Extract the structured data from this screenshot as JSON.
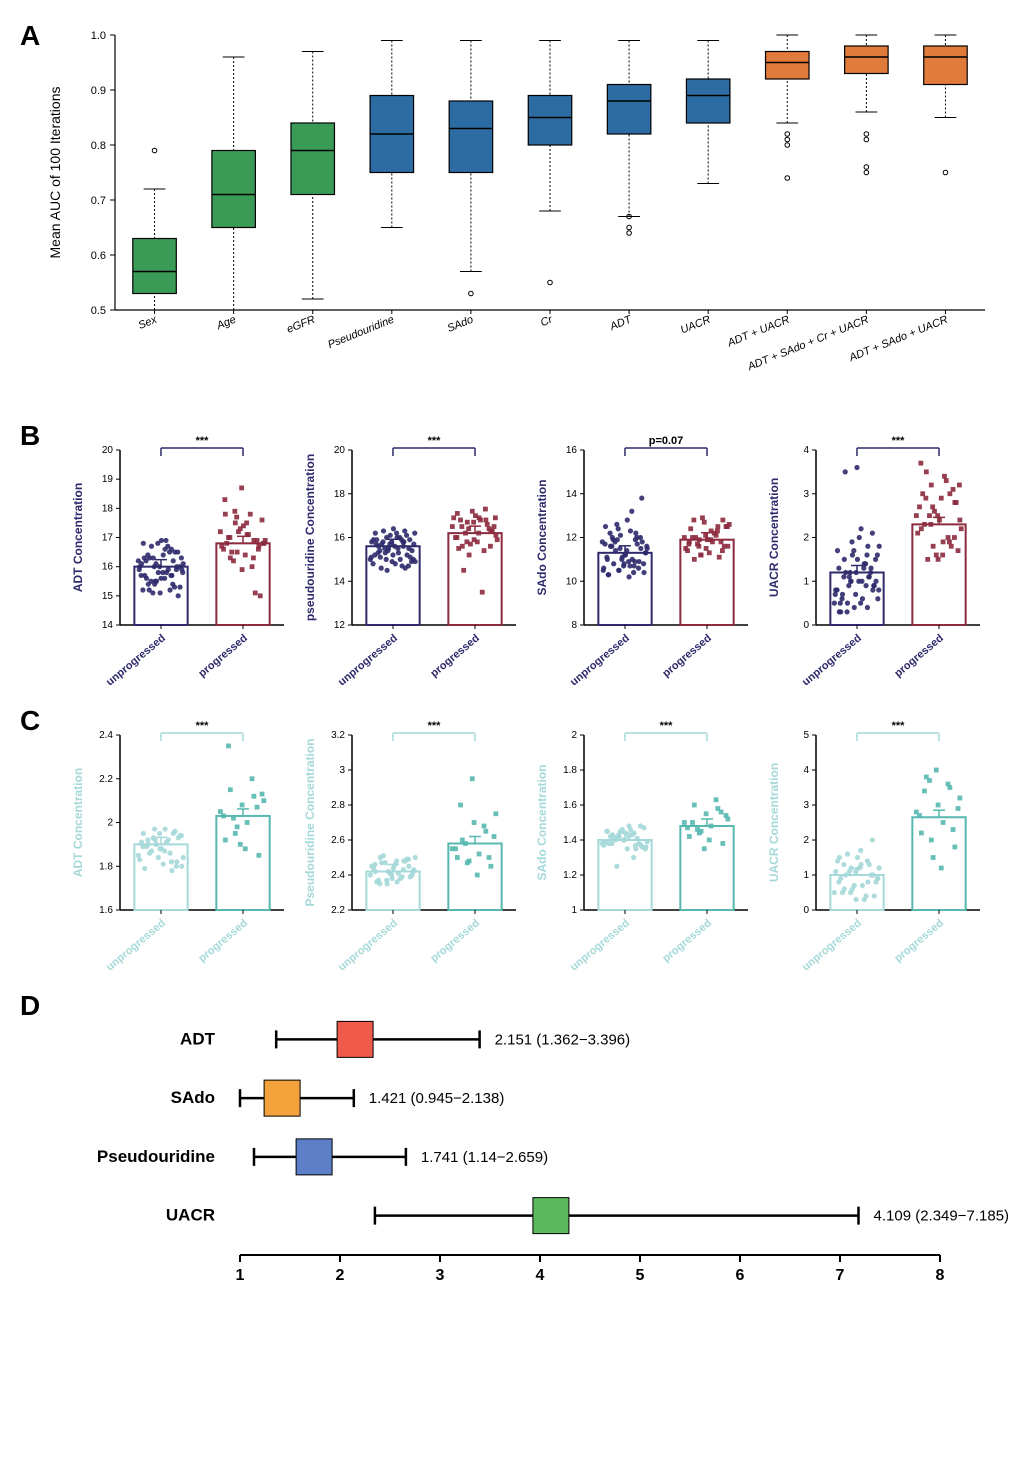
{
  "panelA": {
    "label": "A",
    "type": "boxplot",
    "ylabel": "Mean AUC of 100 Iterations",
    "ylim": [
      0.5,
      1.0
    ],
    "yticks": [
      0.5,
      0.6,
      0.7,
      0.8,
      0.9,
      1.0
    ],
    "ytick_labels": [
      "0.5",
      "0.6",
      "0.7",
      "0.8",
      "0.9",
      "1.0"
    ],
    "label_fontsize": 14,
    "tick_fontsize": 11,
    "categories": [
      "Sex",
      "Age",
      "eGFR",
      "Pseudouridine",
      "SAdo",
      "Cr",
      "ADT",
      "UACR",
      "ADT + UACR",
      "ADT + SAdo + Cr + UACR",
      "ADT + SAdo + UACR"
    ],
    "colors": [
      "#3a9b56",
      "#3a9b56",
      "#3a9b56",
      "#2d6ca2",
      "#2d6ca2",
      "#2d6ca2",
      "#2d6ca2",
      "#2d6ca2",
      "#e07b3c",
      "#e07b3c",
      "#e07b3c"
    ],
    "boxes": [
      {
        "min": 0.5,
        "q1": 0.53,
        "med": 0.57,
        "q3": 0.63,
        "max": 0.72,
        "outliers": [
          0.79
        ]
      },
      {
        "min": 0.5,
        "q1": 0.65,
        "med": 0.71,
        "q3": 0.79,
        "max": 0.96,
        "outliers": []
      },
      {
        "min": 0.52,
        "q1": 0.71,
        "med": 0.79,
        "q3": 0.84,
        "max": 0.97,
        "outliers": []
      },
      {
        "min": 0.65,
        "q1": 0.75,
        "med": 0.82,
        "q3": 0.89,
        "max": 0.99,
        "outliers": []
      },
      {
        "min": 0.57,
        "q1": 0.75,
        "med": 0.83,
        "q3": 0.88,
        "max": 0.99,
        "outliers": [
          0.53
        ]
      },
      {
        "min": 0.68,
        "q1": 0.8,
        "med": 0.85,
        "q3": 0.89,
        "max": 0.99,
        "outliers": [
          0.55
        ]
      },
      {
        "min": 0.67,
        "q1": 0.82,
        "med": 0.88,
        "q3": 0.91,
        "max": 0.99,
        "outliers": [
          0.64,
          0.65,
          0.67
        ]
      },
      {
        "min": 0.73,
        "q1": 0.84,
        "med": 0.89,
        "q3": 0.92,
        "max": 0.99,
        "outliers": []
      },
      {
        "min": 0.84,
        "q1": 0.92,
        "med": 0.95,
        "q3": 0.97,
        "max": 1.0,
        "outliers": [
          0.8,
          0.81,
          0.82,
          0.74
        ]
      },
      {
        "min": 0.86,
        "q1": 0.93,
        "med": 0.96,
        "q3": 0.98,
        "max": 1.0,
        "outliers": [
          0.81,
          0.82,
          0.75,
          0.76
        ]
      },
      {
        "min": 0.85,
        "q1": 0.91,
        "med": 0.96,
        "q3": 0.98,
        "max": 1.0,
        "outliers": [
          0.75
        ]
      }
    ],
    "background_color": "#ffffff",
    "box_border_color": "#000000",
    "whisker_color": "#000000"
  },
  "panelB": {
    "label": "B",
    "type": "scatter_bar_row",
    "accent_colors": {
      "unprogressed": "#2e2a6b",
      "progressed": "#8c2a3e"
    },
    "xlabels": [
      "unprogressed",
      "progressed"
    ],
    "sig_label": "***",
    "charts": [
      {
        "ylabel": "ADT Concentration",
        "ylim": [
          14,
          20
        ],
        "yticks": [
          14,
          15,
          16,
          17,
          18,
          19,
          20
        ],
        "bar_heights": [
          16.0,
          16.8
        ],
        "sig": "***",
        "pts_left": [
          16.2,
          15.5,
          15.7,
          16.8,
          15.1,
          16.0,
          15.4,
          16.6,
          15.9,
          16.3,
          15.2,
          16.1,
          15.8,
          16.5,
          15.6,
          16.4,
          15.3,
          16.7,
          15.9,
          16.0,
          15.5,
          16.2,
          15.7,
          16.9,
          15.0,
          16.3,
          15.8,
          16.1,
          15.4,
          16.6,
          15.2,
          16.0,
          15.9,
          16.4,
          15.6,
          16.3,
          15.1,
          16.5,
          15.7,
          16.8,
          15.3,
          16.2,
          15.8,
          16.0,
          15.5,
          16.7,
          15.9,
          16.1,
          15.4,
          16.3,
          15.6,
          16.5,
          15.2,
          16.9,
          15.8,
          16.0,
          15.7
        ],
        "pts_right": [
          17.2,
          16.5,
          16.9,
          17.8,
          15.9,
          16.7,
          16.3,
          17.1,
          16.8,
          17.5,
          16.0,
          16.6,
          17.3,
          16.9,
          17.0,
          16.4,
          17.6,
          16.2,
          17.8,
          16.7,
          17.2,
          15.1,
          16.8,
          17.4,
          15.0,
          16.5,
          17.1,
          16.9,
          17.7,
          16.3,
          18.3,
          18.7,
          16.6,
          17.0,
          17.5,
          16.8,
          17.9
        ]
      },
      {
        "ylabel": "pseudouridine Concentration",
        "ylim": [
          12,
          20
        ],
        "yticks": [
          12,
          14,
          16,
          18,
          20
        ],
        "bar_heights": [
          15.6,
          16.2
        ],
        "sig": "***",
        "pts_left": [
          15.0,
          14.5,
          15.8,
          16.2,
          14.9,
          15.5,
          15.1,
          16.0,
          15.7,
          15.3,
          14.7,
          15.9,
          16.1,
          15.2,
          15.6,
          14.8,
          15.4,
          16.3,
          15.0,
          15.8,
          15.5,
          14.6,
          15.9,
          16.4,
          15.1,
          15.7,
          15.3,
          14.9,
          16.0,
          15.6,
          15.2,
          15.8,
          14.7,
          15.4,
          16.2,
          15.0,
          15.5,
          15.9,
          14.8,
          15.7,
          16.1,
          15.3,
          15.6,
          14.9,
          15.8,
          16.0,
          15.1,
          15.4,
          16.3,
          15.7,
          15.2,
          15.9,
          14.6,
          15.5,
          16.2,
          15.0,
          15.8
        ],
        "pts_right": [
          16.5,
          15.2,
          16.8,
          17.1,
          15.9,
          16.3,
          15.6,
          16.9,
          16.1,
          16.7,
          15.4,
          16.0,
          17.2,
          16.4,
          16.8,
          15.8,
          16.5,
          16.2,
          13.5,
          16.9,
          15.7,
          16.6,
          15.5,
          17.0,
          16.3,
          14.5,
          16.8,
          15.9,
          16.4,
          17.3,
          16.0,
          16.7,
          15.6,
          16.5,
          16.2,
          16.9,
          15.8
        ]
      },
      {
        "ylabel": "SAdo Concentration",
        "ylim": [
          8,
          16
        ],
        "yticks": [
          8,
          10,
          12,
          14,
          16
        ],
        "bar_heights": [
          11.3,
          11.9
        ],
        "sig": "p=0.07",
        "pts_left": [
          11.8,
          10.5,
          12.2,
          11.0,
          10.8,
          11.5,
          12.0,
          10.2,
          11.3,
          11.9,
          10.7,
          12.5,
          11.1,
          10.9,
          11.6,
          12.8,
          10.4,
          11.4,
          11.0,
          10.6,
          12.1,
          11.7,
          10.3,
          11.2,
          11.8,
          10.8,
          12.3,
          11.5,
          10.5,
          11.9,
          11.1,
          10.7,
          12.0,
          11.6,
          10.9,
          11.3,
          12.6,
          10.4,
          11.7,
          11.0,
          10.6,
          12.2,
          11.4,
          10.8,
          11.8,
          13.2,
          10.5,
          11.5,
          12.0,
          10.3,
          11.2,
          13.8,
          11.9,
          10.7,
          11.6,
          12.4,
          10.9
        ],
        "pts_right": [
          12.0,
          11.2,
          12.5,
          11.8,
          11.5,
          12.8,
          11.0,
          12.3,
          11.6,
          11.9,
          12.1,
          11.4,
          12.7,
          11.8,
          12.0,
          11.3,
          12.5,
          11.7,
          12.2,
          11.5,
          12.9,
          11.1,
          12.4,
          11.9,
          11.6,
          12.0,
          11.8,
          12.6,
          11.2,
          12.3,
          11.7,
          12.1,
          11.4,
          12.8,
          11.9,
          12.5,
          11.6
        ]
      },
      {
        "ylabel": "UACR Concentration",
        "ylim": [
          0,
          4
        ],
        "yticks": [
          0,
          1,
          2,
          3,
          4
        ],
        "bar_heights": [
          1.2,
          2.3
        ],
        "sig": "***",
        "pts_left": [
          0.5,
          1.0,
          1.8,
          0.3,
          1.2,
          0.8,
          1.5,
          2.2,
          0.6,
          1.1,
          0.9,
          1.7,
          0.4,
          1.3,
          0.7,
          2.0,
          1.0,
          0.5,
          1.4,
          0.8,
          1.6,
          1.1,
          0.3,
          1.5,
          0.9,
          1.2,
          0.6,
          1.8,
          1.0,
          0.4,
          1.3,
          0.7,
          2.1,
          1.1,
          0.5,
          1.6,
          0.9,
          1.4,
          0.8,
          1.7,
          1.2,
          0.6,
          1.0,
          1.5,
          0.3,
          1.3,
          0.7,
          1.9,
          1.1,
          0.5,
          3.6,
          0.9,
          3.5,
          1.0,
          0.8,
          1.2,
          1.6
        ],
        "pts_right": [
          2.5,
          1.8,
          3.0,
          2.2,
          1.5,
          2.8,
          3.5,
          1.9,
          2.4,
          3.2,
          2.0,
          2.7,
          1.6,
          3.1,
          2.3,
          2.9,
          1.7,
          2.5,
          3.3,
          2.1,
          2.6,
          1.8,
          3.0,
          2.4,
          2.8,
          1.5,
          3.4,
          2.2,
          2.7,
          1.9,
          3.7,
          2.5,
          2.0,
          2.9,
          1.6,
          3.2,
          2.3
        ]
      }
    ],
    "label_fontsize": 12,
    "tick_fontsize": 10
  },
  "panelC": {
    "label": "C",
    "type": "scatter_bar_row",
    "accent_colors": {
      "unprogressed": "#a5d8d8",
      "progressed": "#56b8b0"
    },
    "xlabels": [
      "unprogressed",
      "progressed"
    ],
    "sig_label": "***",
    "charts": [
      {
        "ylabel": "ADT Concentration",
        "ylim": [
          1.6,
          2.4
        ],
        "yticks": [
          1.6,
          1.8,
          2.0,
          2.2,
          2.4
        ],
        "bar_heights": [
          1.9,
          2.03
        ],
        "sig": "***",
        "pts_left": [
          1.85,
          1.92,
          1.78,
          1.95,
          1.88,
          1.82,
          1.9,
          1.97,
          1.8,
          1.93,
          1.86,
          1.91,
          1.84,
          1.96,
          1.89,
          1.81,
          1.94,
          1.87,
          1.92,
          1.83,
          1.9,
          1.95,
          1.79,
          1.88,
          1.93,
          1.86,
          1.91,
          1.84,
          1.97,
          1.82,
          1.89,
          1.95,
          1.8,
          1.92,
          1.87,
          1.94
        ],
        "pts_right": [
          2.05,
          1.98,
          2.12,
          1.92,
          2.08,
          1.85,
          2.15,
          2.0,
          2.1,
          1.95,
          2.2,
          2.03,
          1.9,
          2.07,
          2.35,
          1.88,
          2.13,
          2.02
        ]
      },
      {
        "ylabel": "Pseudouridine Concentration",
        "ylim": [
          2.2,
          3.2
        ],
        "yticks": [
          2.2,
          2.4,
          2.6,
          2.8,
          3.0,
          3.2
        ],
        "bar_heights": [
          2.42,
          2.58
        ],
        "sig": "***",
        "pts_left": [
          2.4,
          2.35,
          2.48,
          2.42,
          2.38,
          2.45,
          2.5,
          2.36,
          2.43,
          2.47,
          2.39,
          2.44,
          2.41,
          2.49,
          2.37,
          2.46,
          2.4,
          2.51,
          2.38,
          2.45,
          2.42,
          2.48,
          2.36,
          2.44,
          2.39,
          2.47,
          2.41,
          2.5,
          2.37,
          2.43,
          2.46,
          2.4,
          2.49,
          2.35,
          2.48,
          2.42
        ],
        "pts_right": [
          2.55,
          2.48,
          2.65,
          2.5,
          2.7,
          2.45,
          2.6,
          2.52,
          2.75,
          2.47,
          2.68,
          2.55,
          2.95,
          2.5,
          2.8,
          2.4,
          2.62,
          2.58
        ]
      },
      {
        "ylabel": "SAdo Concentration",
        "ylim": [
          1.0,
          2.0
        ],
        "yticks": [
          1.0,
          1.2,
          1.4,
          1.6,
          1.8,
          2.0
        ],
        "bar_heights": [
          1.4,
          1.48
        ],
        "sig": "***",
        "pts_left": [
          1.38,
          1.42,
          1.35,
          1.45,
          1.4,
          1.37,
          1.43,
          1.48,
          1.36,
          1.41,
          1.44,
          1.39,
          1.46,
          1.38,
          1.42,
          1.35,
          1.47,
          1.4,
          1.43,
          1.37,
          1.45,
          1.41,
          1.38,
          1.44,
          1.36,
          1.42,
          1.46,
          1.39,
          1.43,
          1.37,
          1.45,
          1.4,
          1.48,
          1.38,
          1.42,
          1.35,
          1.25,
          1.3
        ],
        "pts_right": [
          1.5,
          1.45,
          1.58,
          1.42,
          1.55,
          1.38,
          1.6,
          1.48,
          1.52,
          1.44,
          1.63,
          1.47,
          1.35,
          1.56,
          1.5,
          1.4,
          1.54,
          1.46
        ]
      },
      {
        "ylabel": "UACR Concentration",
        "ylim": [
          0,
          5
        ],
        "yticks": [
          0,
          1,
          2,
          3,
          4,
          5
        ],
        "bar_heights": [
          1.0,
          2.65
        ],
        "sig": "***",
        "pts_left": [
          0.5,
          1.2,
          0.8,
          1.5,
          0.3,
          1.0,
          0.6,
          1.3,
          0.9,
          1.1,
          0.4,
          1.4,
          0.7,
          1.0,
          0.5,
          1.2,
          0.8,
          1.6,
          0.3,
          1.1,
          0.6,
          1.3,
          0.9,
          1.5,
          0.4,
          1.0,
          0.7,
          1.2,
          0.5,
          1.4,
          0.8,
          1.1,
          2.0,
          1.3,
          1.7,
          0.9
        ],
        "pts_right": [
          2.8,
          1.5,
          3.5,
          2.2,
          3.0,
          1.8,
          3.8,
          2.5,
          3.2,
          2.0,
          3.6,
          2.7,
          4.0,
          2.3,
          3.4,
          1.2,
          2.9,
          3.7
        ]
      }
    ],
    "label_fontsize": 12,
    "tick_fontsize": 10
  },
  "panelD": {
    "label": "D",
    "type": "forest",
    "xlim": [
      1,
      8
    ],
    "xticks": [
      1,
      2,
      3,
      4,
      5,
      6,
      7,
      8
    ],
    "label_fontsize": 15,
    "tick_fontsize": 14,
    "rows": [
      {
        "name": "ADT",
        "est": 2.151,
        "lo": 1.362,
        "hi": 3.396,
        "color": "#ef5a4a",
        "text": "2.151 (1.362−3.396)"
      },
      {
        "name": "SAdo",
        "est": 1.421,
        "lo": 0.945,
        "hi": 2.138,
        "color": "#f2a33c",
        "text": "1.421 (0.945−2.138)"
      },
      {
        "name": "Pseudouridine",
        "est": 1.741,
        "lo": 1.14,
        "hi": 2.659,
        "color": "#5c7fc7",
        "text": "1.741 (1.14−2.659)"
      },
      {
        "name": "UACR",
        "est": 4.109,
        "lo": 2.349,
        "hi": 7.185,
        "color": "#5cb85c",
        "text": "4.109 (2.349−7.185)"
      }
    ]
  }
}
